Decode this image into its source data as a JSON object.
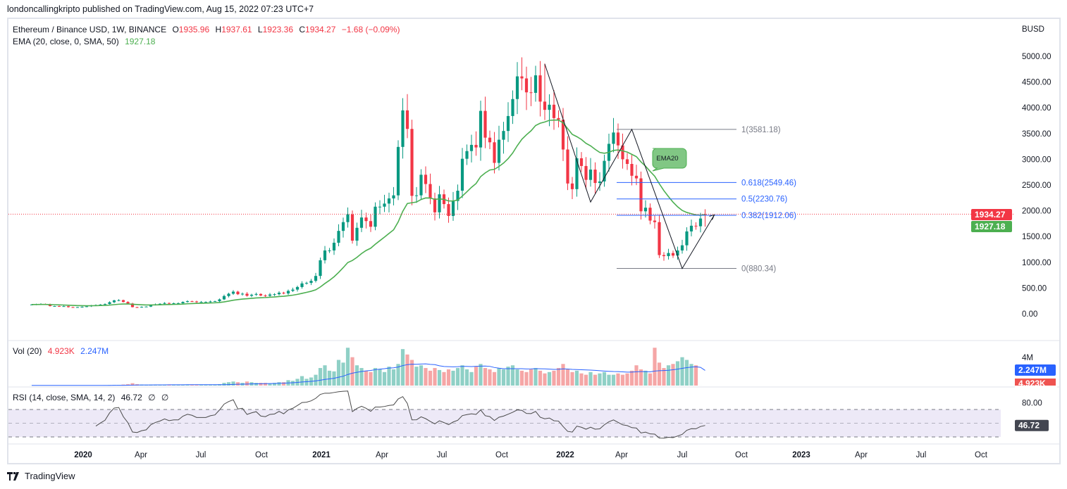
{
  "publisher_line": "londoncallingkripto published on TradingView.com, Aug 15, 2022 07:23 UTC+7",
  "legend": {
    "symbol": "Ethereum / Binance USD, 1W, BINANCE",
    "open_label": "O",
    "open": "1935.96",
    "high_label": "H",
    "high": "1937.61",
    "low_label": "L",
    "low": "1923.36",
    "close_label": "C",
    "close": "1934.27",
    "change": "−1.68 (−0.09%)",
    "ema_label": "EMA (20, close, 0, SMA, 50)",
    "ema_value": "1927.18",
    "vol_label": "Vol (20)",
    "vol_value": "4.923K",
    "vol_ma_value": "2.247M",
    "rsi_label": "RSI (14, close, SMA, 14, 2)",
    "rsi_value": "46.72",
    "rsi_extra1": "∅",
    "rsi_extra2": "∅"
  },
  "price_axis": {
    "currency": "BUSD",
    "ticks": [
      "5000.00",
      "4500.00",
      "4000.00",
      "3500.00",
      "3000.00",
      "2500.00",
      "2000.00",
      "1500.00",
      "1000.00",
      "500.00",
      "0.00"
    ],
    "last_price_label": "1934.27",
    "ema_price_label": "1927.18",
    "vol_tick": "4M",
    "vol_ma_label": "2.247M",
    "vol_label": "4.923K",
    "rsi_tick": "80.00",
    "rsi_label": "46.72"
  },
  "time_axis": [
    "2020",
    "Apr",
    "Jul",
    "Oct",
    "2021",
    "Apr",
    "Jul",
    "Oct",
    "2022",
    "Apr",
    "Jul",
    "Oct",
    "2023",
    "Apr",
    "Jul",
    "Oct"
  ],
  "annotations": {
    "callout": "EMA20",
    "fib": [
      {
        "label": "1(3581.18)",
        "price": 3581.18,
        "color": "#787b86"
      },
      {
        "label": "0.618(2549.46)",
        "price": 2549.46,
        "color": "#2962ff"
      },
      {
        "label": "0.5(2230.76)",
        "price": 2230.76,
        "color": "#2962ff"
      },
      {
        "label": "0.382(1912.06)",
        "price": 1912.06,
        "color": "#2962ff"
      },
      {
        "label": "0(880.34)",
        "price": 880.34,
        "color": "#787b86"
      }
    ],
    "zigzag": [
      [
        112,
        4850
      ],
      [
        122,
        2170
      ],
      [
        131,
        3581
      ],
      [
        142,
        880
      ],
      [
        149,
        1920
      ]
    ]
  },
  "footer": {
    "brand": "TradingView"
  },
  "colors": {
    "up": "#089981",
    "down": "#f23645",
    "ema": "#4caf50",
    "vol_up": "#8fd0c6",
    "vol_down": "#f5a6a6",
    "vol_ma": "#2962ff",
    "rsi": "#4a4a4a",
    "rsi_band": "#ede9f7"
  },
  "chart_data": {
    "type": "candlestick",
    "title": "Ethereum / Binance USD, 1W, BINANCE",
    "interval": "1W",
    "ylabel": "BUSD",
    "ylim": [
      0,
      5000
    ],
    "ema_period": 20,
    "rsi_period": 14,
    "rsi_band": [
      30,
      70
    ],
    "closes": [
      180,
      185,
      190,
      185,
      150,
      150,
      145,
      148,
      130,
      128,
      130,
      135,
      145,
      165,
      170,
      180,
      190,
      225,
      260,
      265,
      230,
      200,
      130,
      125,
      135,
      140,
      170,
      185,
      195,
      210,
      200,
      205,
      205,
      230,
      245,
      240,
      230,
      230,
      230,
      240,
      245,
      280,
      345,
      390,
      430,
      380,
      390,
      350,
      370,
      385,
      355,
      350,
      375,
      380,
      410,
      395,
      445,
      470,
      520,
      590,
      600,
      640,
      735,
      1040,
      1230,
      1230,
      1380,
      1610,
      1780,
      1930,
      1420,
      1670,
      1870,
      1800,
      1690,
      2080,
      2080,
      2140,
      2240,
      2300,
      3240,
      3950,
      3590,
      2290,
      2300,
      2700,
      2520,
      2240,
      1970,
      2320,
      2130,
      1900,
      2190,
      2390,
      3010,
      3160,
      3280,
      3230,
      3940,
      3420,
      3330,
      2930,
      3380,
      3550,
      3840,
      4170,
      4610,
      4570,
      4300,
      4290,
      4630,
      4120,
      3960,
      4060,
      3800,
      3770,
      3190,
      2530,
      2420,
      3020,
      2870,
      2600,
      2800,
      2540,
      2570,
      2970,
      3300,
      3520,
      3270,
      3000,
      2910,
      2680,
      2630,
      1990,
      2060,
      1810,
      1780,
      1140,
      1120,
      1180,
      1130,
      1230,
      1330,
      1600,
      1710,
      1700,
      1850,
      1934.27
    ],
    "volume_millions": [
      0.02,
      0.02,
      0.02,
      0.02,
      0.02,
      0.02,
      0.02,
      0.02,
      0.02,
      0.02,
      0.02,
      0.03,
      0.03,
      0.04,
      0.04,
      0.05,
      0.06,
      0.08,
      0.1,
      0.1,
      0.15,
      0.2,
      0.35,
      0.2,
      0.15,
      0.12,
      0.15,
      0.1,
      0.1,
      0.1,
      0.12,
      0.1,
      0.1,
      0.1,
      0.1,
      0.1,
      0.1,
      0.1,
      0.1,
      0.1,
      0.12,
      0.2,
      0.4,
      0.5,
      0.6,
      0.5,
      0.4,
      0.6,
      0.5,
      0.4,
      0.4,
      0.4,
      0.3,
      0.4,
      0.5,
      0.5,
      0.8,
      0.7,
      1.0,
      1.4,
      1.0,
      1.2,
      1.6,
      2.6,
      3.0,
      2.2,
      2.1,
      3.8,
      3.4,
      5.6,
      4.2,
      3.0,
      2.6,
      2.2,
      2.0,
      2.6,
      2.4,
      2.0,
      2.8,
      2.4,
      3.2,
      5.4,
      4.6,
      3.8,
      2.8,
      3.0,
      2.6,
      2.2,
      2.6,
      2.3,
      2.0,
      2.4,
      2.2,
      2.6,
      3.0,
      2.4,
      2.0,
      2.8,
      3.2,
      2.6,
      2.4,
      2.0,
      2.6,
      2.4,
      2.8,
      3.0,
      2.4,
      2.2,
      2.0,
      2.4,
      2.6,
      2.2,
      1.8,
      2.0,
      2.2,
      2.6,
      3.2,
      2.4,
      2.0,
      2.2,
      1.8,
      1.6,
      2.0,
      1.6,
      1.8,
      2.0,
      1.6,
      1.6,
      1.8,
      1.6,
      1.8,
      2.2,
      3.0,
      2.4,
      2.2,
      1.8,
      5.6,
      3.4,
      2.6,
      3.0,
      3.2,
      3.6,
      4.2,
      3.8,
      3.2,
      3.0,
      0.005
    ]
  }
}
